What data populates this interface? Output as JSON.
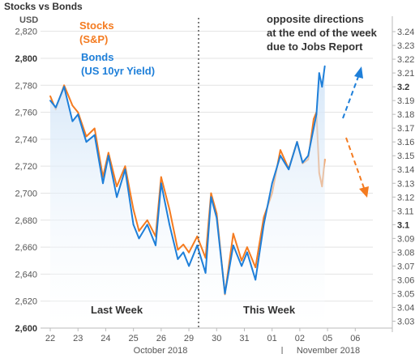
{
  "chart_data": {
    "type": "line",
    "title": "Stocks vs Bonds",
    "left_axis_unit": "USD",
    "x_tick_labels": [
      "22",
      "23",
      "24",
      "25",
      "26",
      "29",
      "30",
      "31",
      "01",
      "02",
      "05",
      "06"
    ],
    "month_labels": [
      "October 2018",
      "|",
      "November 2018"
    ],
    "left_axis": {
      "ylim": [
        2600,
        2830
      ],
      "ticks": [
        "2,600",
        "2,620",
        "2,640",
        "2,660",
        "2,680",
        "2,700",
        "2,720",
        "2,740",
        "2,760",
        "2,780",
        "2,800",
        "2,820"
      ],
      "bold_ticks": [
        "2,600",
        "2,800"
      ]
    },
    "right_axis": {
      "ylim": [
        3.025,
        3.25
      ],
      "ticks": [
        "3.03",
        "3.04",
        "3.05",
        "3.06",
        "3.07",
        "3.08",
        "3.09",
        "3.1",
        "3.11",
        "3.12",
        "3.13",
        "3.14",
        "3.15",
        "3.16",
        "3.17",
        "3.18",
        "3.19",
        "3.2",
        "3.21",
        "3.22",
        "3.23",
        "3.24"
      ],
      "bold_ticks": [
        "3.1",
        "3.2"
      ]
    },
    "series": [
      {
        "name": "Stocks\n(S&P)",
        "color": "#F47B20",
        "axis": "left",
        "x": [
          0,
          0.2,
          0.5,
          0.8,
          1.0,
          1.3,
          1.6,
          1.9,
          2.1,
          2.4,
          2.7,
          3.0,
          3.2,
          3.5,
          3.8,
          4.0,
          4.3,
          4.6,
          4.8,
          5.0,
          5.3,
          5.6,
          5.8,
          6.0,
          6.3,
          6.6,
          6.9,
          7.1,
          7.4,
          7.7,
          8.0,
          8.3,
          8.6,
          8.9,
          9.1,
          9.3,
          9.5,
          9.6,
          9.7,
          9.8,
          9.9
        ],
        "y": [
          2772,
          2762,
          2780,
          2765,
          2760,
          2742,
          2748,
          2712,
          2730,
          2705,
          2720,
          2688,
          2672,
          2680,
          2668,
          2712,
          2688,
          2658,
          2662,
          2656,
          2668,
          2652,
          2700,
          2685,
          2625,
          2670,
          2650,
          2660,
          2645,
          2682,
          2700,
          2732,
          2718,
          2738,
          2722,
          2725,
          2755,
          2760,
          2715,
          2705,
          2725
        ]
      },
      {
        "name": "Bonds\n(US 10yr Yield)",
        "color": "#1E7FD9",
        "axis": "right",
        "x": [
          0,
          0.2,
          0.5,
          0.8,
          1.0,
          1.3,
          1.6,
          1.9,
          2.1,
          2.4,
          2.7,
          3.0,
          3.2,
          3.5,
          3.8,
          4.0,
          4.3,
          4.6,
          4.8,
          5.0,
          5.3,
          5.6,
          5.8,
          6.0,
          6.3,
          6.6,
          6.9,
          7.1,
          7.4,
          7.7,
          8.0,
          8.3,
          8.6,
          8.9,
          9.1,
          9.3,
          9.5,
          9.6,
          9.7,
          9.8,
          9.9
        ],
        "y": [
          3.19,
          3.185,
          3.2,
          3.175,
          3.18,
          3.16,
          3.165,
          3.13,
          3.15,
          3.12,
          3.14,
          3.1,
          3.09,
          3.1,
          3.085,
          3.13,
          3.1,
          3.075,
          3.08,
          3.07,
          3.085,
          3.065,
          3.12,
          3.105,
          3.05,
          3.085,
          3.07,
          3.08,
          3.06,
          3.1,
          3.13,
          3.15,
          3.14,
          3.16,
          3.145,
          3.15,
          3.17,
          3.18,
          3.21,
          3.2,
          3.215
        ]
      }
    ],
    "annotations": {
      "period_left": "Last Week",
      "period_right": "This Week",
      "note": [
        "opposite directions",
        "at the end of the week",
        "due to Jobs Report"
      ]
    },
    "arrow_colors": {
      "up": "#1E7FD9",
      "down": "#F47B20"
    },
    "grid": true,
    "legend": "top-left"
  }
}
